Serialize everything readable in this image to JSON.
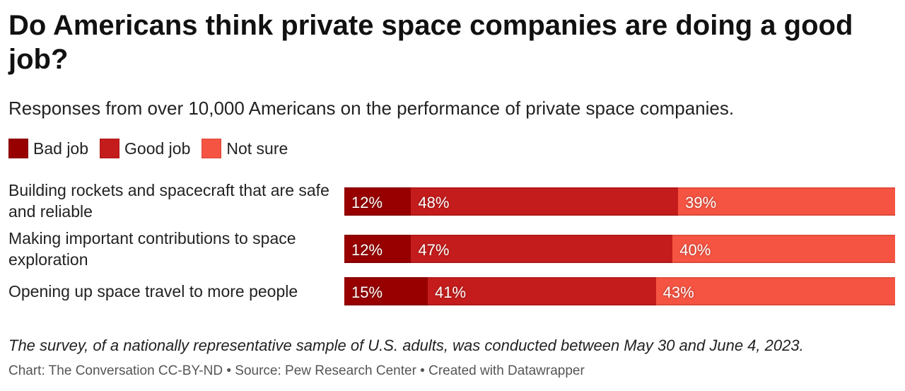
{
  "chart_data": {
    "type": "bar",
    "orientation": "horizontal",
    "stacked": true,
    "title": "Do Americans think private space companies are doing a good job?",
    "subtitle": "Responses from over 10,000 Americans on the performance of private space companies.",
    "categories": [
      "Building rockets and spacecraft that are safe and reliable",
      "Making important contributions to space exploration",
      "Opening up space travel to more people"
    ],
    "series": [
      {
        "name": "Bad job",
        "color": "#980000",
        "values": [
          12,
          12,
          15
        ],
        "labels": [
          "12%",
          "12%",
          "15%"
        ]
      },
      {
        "name": "Good job",
        "color": "#c41c1c",
        "values": [
          48,
          47,
          41
        ],
        "labels": [
          "48%",
          "47%",
          "41%"
        ]
      },
      {
        "name": "Not sure",
        "color": "#f65442",
        "values": [
          39,
          40,
          43
        ],
        "labels": [
          "39%",
          "40%",
          "43%"
        ]
      }
    ],
    "xlim": [
      0,
      99
    ],
    "legend_position": "top-left",
    "note": "The survey, of a nationally representative sample of U.S. adults, was conducted between May 30 and June 4, 2023.",
    "footer": "Chart: The Conversation CC-BY-ND • Source: Pew Research Center • Created with Datawrapper"
  }
}
